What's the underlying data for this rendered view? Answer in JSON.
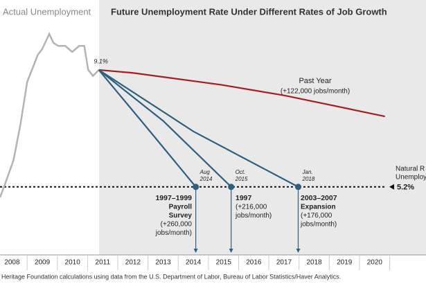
{
  "chart_data": {
    "type": "line",
    "title": "Future Unemployment Rate Under Different Rates of Job Growth",
    "xlim": [
      2008.1,
      2022.2
    ],
    "ylim": [
      3,
      11.2
    ],
    "xticks": [
      {
        "value": 2008.5,
        "label": "2008"
      },
      {
        "value": 2009.5,
        "label": "2009"
      },
      {
        "value": 2010.5,
        "label": "2010"
      },
      {
        "value": 2011.5,
        "label": "2011"
      },
      {
        "value": 2012.5,
        "label": "2012"
      },
      {
        "value": 2013.5,
        "label": "2013"
      },
      {
        "value": 2014.5,
        "label": "2014"
      },
      {
        "value": 2015.5,
        "label": "2015"
      },
      {
        "value": 2016.5,
        "label": "2016"
      },
      {
        "value": 2017.5,
        "label": "2017"
      },
      {
        "value": 2018.5,
        "label": "2018"
      },
      {
        "value": 2019.5,
        "label": "2019"
      },
      {
        "value": 2020.5,
        "label": "2020"
      }
    ],
    "start_label": "9.1%",
    "series": [
      {
        "name": "Actual Unemployment",
        "color": "#b3b3b3",
        "x": [
          2008.1,
          2008.27,
          2008.55,
          2008.78,
          2009.0,
          2009.35,
          2009.5,
          2009.73,
          2009.87,
          2010.03,
          2010.26,
          2010.49,
          2010.72,
          2010.89,
          2011.02,
          2011.18,
          2011.37
        ],
        "values": [
          4.85,
          5.3,
          6.1,
          7.3,
          8.7,
          9.6,
          9.8,
          10.3,
          10.0,
          9.9,
          9.9,
          9.7,
          9.9,
          9.9,
          9.1,
          8.9,
          9.1
        ]
      },
      {
        "name": "Past Year",
        "note_lines": [
          "(+122,000 jobs/month)"
        ],
        "color": "#a31d23",
        "x": [
          2011.37,
          2012.5,
          2015.44,
          2017.5,
          2020.84
        ],
        "values": [
          9.1,
          9.0,
          8.6,
          8.25,
          7.55
        ]
      },
      {
        "name": "1997–1999",
        "note_lines": [
          "Payroll",
          "Survey",
          "(+260,000",
          "jobs/month)"
        ],
        "color": "#2e5f7f",
        "target_label": [
          "Aug",
          "2014"
        ],
        "x": [
          2011.37,
          2012.9,
          2014.58
        ],
        "values": [
          9.1,
          7.25,
          5.2
        ]
      },
      {
        "name": "1997",
        "note_lines": [
          "(+216,000",
          "jobs/month)"
        ],
        "color": "#2e5f7f",
        "target_label": [
          "Oct.",
          "2015"
        ],
        "x": [
          2011.37,
          2013.5,
          2015.75
        ],
        "values": [
          9.1,
          7.4,
          5.2
        ]
      },
      {
        "name": "2003–2007",
        "note_lines": [
          "Expansion",
          "(+176,000",
          "jobs/month)"
        ],
        "color": "#2e5f7f",
        "target_label": [
          "Jan.",
          "2018"
        ],
        "x": [
          2011.37,
          2014.5,
          2017.97
        ],
        "values": [
          9.1,
          7.05,
          5.2
        ]
      }
    ],
    "reference": {
      "value": 5.2,
      "label": "5.2%",
      "name_lines": [
        "Natural R",
        "Unemploy"
      ]
    },
    "source": "Heritage Foundation calculations using data from the U.S. Department of Labor, Bureau of Labor Statistics/Haver Analytics."
  }
}
